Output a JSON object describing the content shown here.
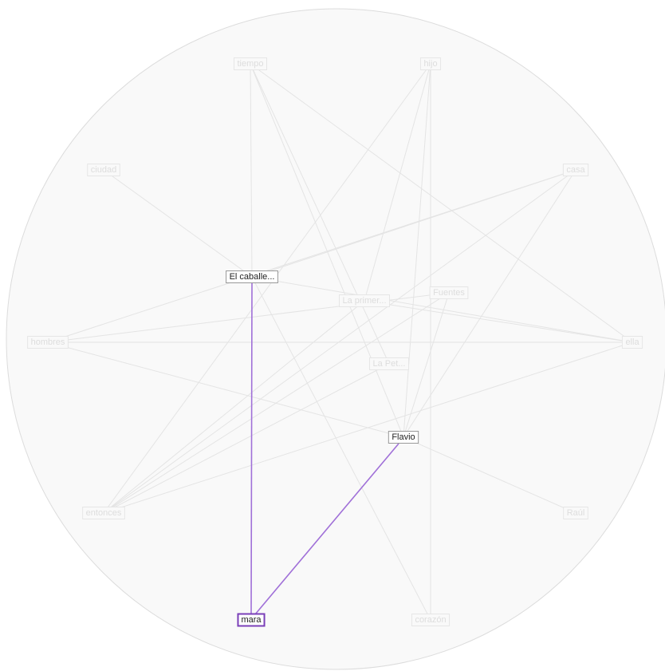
{
  "nodes": [
    {
      "label": "tiempo"
    },
    {
      "label": "hijo"
    },
    {
      "label": "ciudad"
    },
    {
      "label": "casa"
    },
    {
      "label": "El caballe..."
    },
    {
      "label": "La primer..."
    },
    {
      "label": "Fuentes"
    },
    {
      "label": "hombres"
    },
    {
      "label": "ella"
    },
    {
      "label": "La Pet..."
    },
    {
      "label": "Flavio"
    },
    {
      "label": "entonces"
    },
    {
      "label": "Raúl"
    },
    {
      "label": "mara"
    },
    {
      "label": "corazón"
    }
  ]
}
